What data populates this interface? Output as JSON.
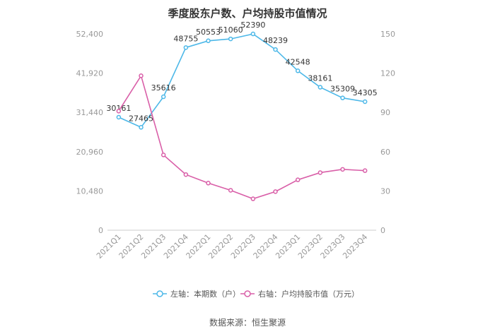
{
  "chart_data": {
    "type": "line",
    "title": "季度股东户数、户均持股市值情况",
    "source": "数据来源：恒生聚源",
    "categories": [
      "2021Q1",
      "2021Q2",
      "2021Q3",
      "2021Q4",
      "2022Q1",
      "2022Q2",
      "2022Q3",
      "2022Q4",
      "2023Q1",
      "2023Q2",
      "2023Q3",
      "2023Q4"
    ],
    "left_axis": {
      "ticks": [
        "0",
        "10,480",
        "20,960",
        "31,440",
        "41,920",
        "52,400"
      ],
      "ylim": [
        0,
        52400
      ]
    },
    "right_axis": {
      "ticks": [
        "0",
        "30",
        "60",
        "90",
        "120",
        "150"
      ],
      "ylim": [
        0,
        150
      ]
    },
    "series": [
      {
        "name": "左轴：本期数（户）",
        "axis": "left",
        "color": "#4db8e8",
        "values": [
          30161,
          27465,
          35616,
          48755,
          50553,
          51060,
          52390,
          48239,
          42548,
          38161,
          35309,
          34305
        ],
        "labels": [
          "30161",
          "27465",
          "35616",
          "48755",
          "50553",
          "51060",
          "52390",
          "48239",
          "42548",
          "38161",
          "35309",
          "34305"
        ]
      },
      {
        "name": "右轴：户均持股市值（万元）",
        "axis": "right",
        "color": "#d95fa8",
        "values": [
          91,
          118,
          57.5,
          42.5,
          36,
          30.5,
          24,
          29.5,
          38.5,
          44,
          46.5,
          45.5
        ]
      }
    ],
    "legend_position": "bottom",
    "grid": false
  }
}
